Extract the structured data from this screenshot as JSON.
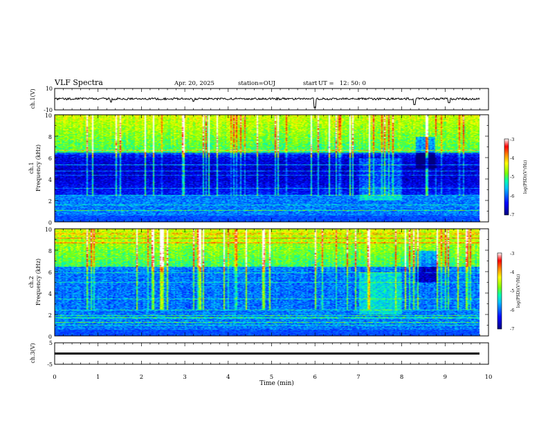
{
  "header": {
    "title": "VLF Spectra",
    "date": "Apr. 20, 2025",
    "station": "station=OUJ",
    "start_label": "start",
    "start_ut": "UT =   12: 50: 0"
  },
  "panels": {
    "ch1_waveform": {
      "ylabel": "ch.1(V)",
      "ticks": [
        "10",
        "-10"
      ]
    },
    "ch1_spectrogram": {
      "ylabel_top": "ch.1",
      "ylabel_bottom": "Frequency (kHz)",
      "ticks": [
        "10",
        "8",
        "6",
        "4",
        "2",
        "0"
      ]
    },
    "ch2_spectrogram": {
      "ylabel_top": "ch.2",
      "ylabel_bottom": "Frequency (kHz)",
      "ticks": [
        "10",
        "8",
        "6",
        "4",
        "2",
        "0"
      ]
    },
    "ch3_waveform": {
      "ylabel": "ch.3(V)",
      "ticks": [
        "5",
        "-5"
      ]
    }
  },
  "colorbar": {
    "label": "log(PSD)(V²/Hz)",
    "ticks": [
      "-3",
      "-4",
      "-5",
      "-6",
      "-7"
    ],
    "colors": [
      "#00007f",
      "#0000ff",
      "#00bfff",
      "#00ffb0",
      "#7fff00",
      "#ffff00",
      "#ff7f00",
      "#ff0000",
      "#ffffff"
    ]
  },
  "chart_data": [
    {
      "type": "line",
      "title": "VLF Spectra",
      "ylabel": "ch.1(V)",
      "xlabel": "",
      "xlim": [
        0,
        10
      ],
      "ylim": [
        -10,
        10
      ],
      "x": [
        0,
        1,
        2,
        3,
        4,
        5,
        6,
        7,
        8,
        9,
        9.8
      ],
      "values": [
        0,
        0,
        0,
        0,
        0,
        0,
        0,
        0,
        0,
        0,
        0
      ],
      "notes_shown": "noisy baseline near 0 V with spikes near 6.0, 8.3, 9.1 min"
    },
    {
      "type": "heatmap",
      "ylabel": "Frequency (kHz)",
      "xlim": [
        0,
        10
      ],
      "ylim": [
        0,
        10
      ],
      "zlabel": "log(PSD)(V²/Hz)",
      "zlim": [
        -7,
        -3
      ],
      "data_extent_x": [
        0,
        9.8
      ],
      "quiet_band_khz": [
        2.5,
        5.5
      ],
      "active_band_khz": [
        6,
        10
      ]
    },
    {
      "type": "heatmap",
      "ylabel": "Frequency (kHz)",
      "xlim": [
        0,
        10
      ],
      "ylim": [
        0,
        10
      ],
      "zlabel": "log(PSD)(V²/Hz)",
      "zlim": [
        -7,
        -3
      ],
      "data_extent_x": [
        0,
        9.8
      ]
    },
    {
      "type": "line",
      "ylabel": "ch.3(V)",
      "xlabel": "Time (min)",
      "xlim": [
        0,
        10
      ],
      "ylim": [
        -5,
        5
      ],
      "x": [
        0,
        9.8
      ],
      "values": [
        0,
        0
      ],
      "x_ticks": [
        "0",
        "1",
        "2",
        "3",
        "4",
        "5",
        "6",
        "7",
        "8",
        "9",
        "10"
      ]
    }
  ]
}
